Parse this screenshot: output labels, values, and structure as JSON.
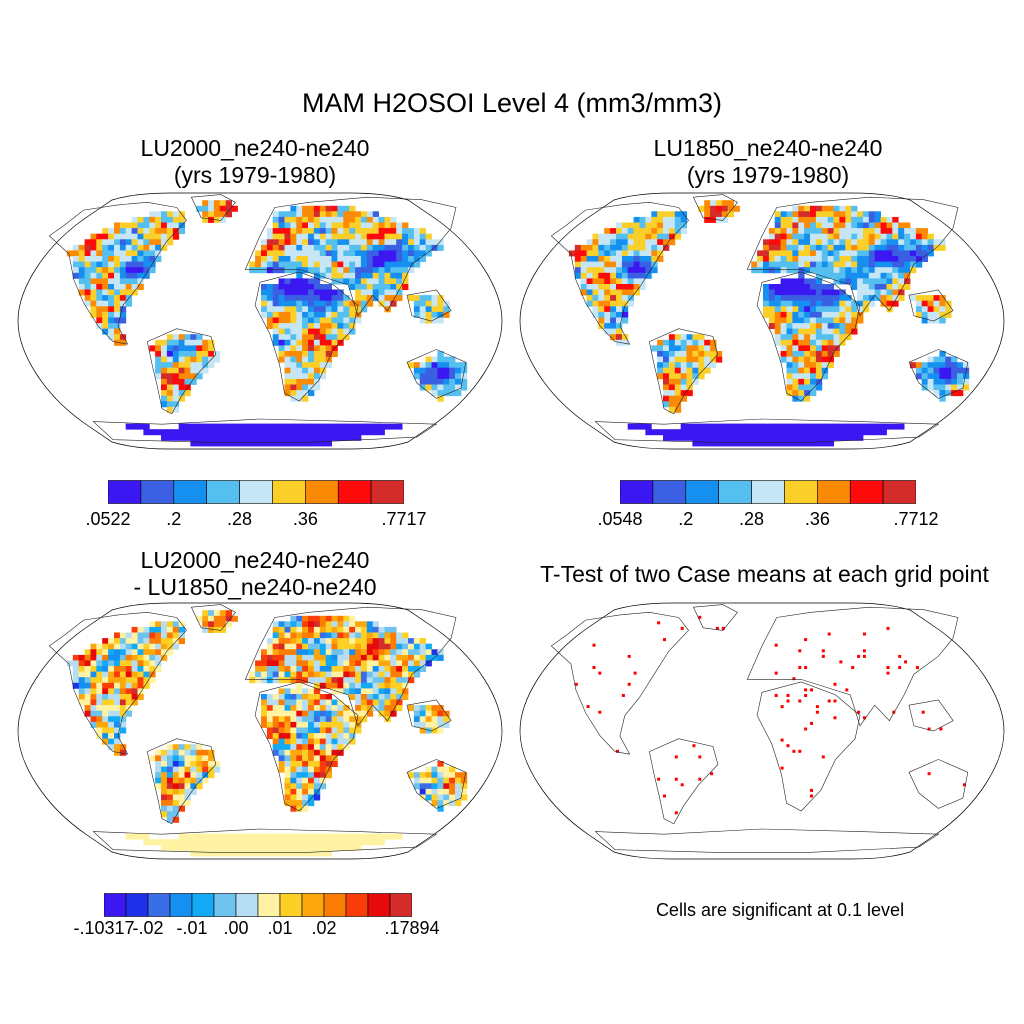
{
  "title": "MAM H2OSOI Level 4 (mm3/mm3)",
  "panels": [
    {
      "id": "a",
      "title_line1": "LU2000_ne240-ne240",
      "title_line2": "(yrs 1979-1980)",
      "field": "mean",
      "colorbar": {
        "colors": [
          "#3b17f2",
          "#3a5fe3",
          "#1690f0",
          "#55bff0",
          "#c6e6f6",
          "#fbcf2a",
          "#fb8a05",
          "#fd0a0a",
          "#d42b2b"
        ],
        "labels": [
          ".0522",
          ".2",
          ".28",
          ".36",
          ".7717"
        ],
        "label_boundaries": [
          0,
          2,
          4,
          6,
          9
        ]
      }
    },
    {
      "id": "b",
      "title_line1": "LU1850_ne240-ne240",
      "title_line2": "(yrs 1979-1980)",
      "field": "mean",
      "colorbar": {
        "colors": [
          "#3b17f2",
          "#3a5fe3",
          "#1690f0",
          "#55bff0",
          "#c6e6f6",
          "#fbcf2a",
          "#fb8a05",
          "#fd0a0a",
          "#d42b2b"
        ],
        "labels": [
          ".0548",
          ".2",
          ".28",
          ".36",
          ".7712"
        ],
        "label_boundaries": [
          0,
          2,
          4,
          6,
          9
        ]
      }
    },
    {
      "id": "c",
      "title_line1": "LU2000_ne240-ne240",
      "title_line2": "- LU1850_ne240-ne240",
      "field": "difference",
      "colorbar": {
        "colors": [
          "#3b17f2",
          "#2030e8",
          "#3a6ee8",
          "#1690f0",
          "#14a9f5",
          "#6dc3ee",
          "#b7ddf3",
          "#fff3a3",
          "#fcd025",
          "#fca80c",
          "#fb7d04",
          "#fa3c0a",
          "#e60a0a",
          "#d42b2b"
        ],
        "labels": [
          "-.10317",
          "-.02",
          "-.01",
          ".00",
          ".01",
          ".02",
          ".17894"
        ],
        "label_boundaries": [
          0,
          2,
          4,
          6,
          8,
          10,
          14
        ]
      }
    },
    {
      "id": "d",
      "title": "T-Test of two Case means at each grid point",
      "field": "significance",
      "note": "Cells are significant at 0.1 level",
      "marker_color": "#ff0000"
    }
  ]
}
